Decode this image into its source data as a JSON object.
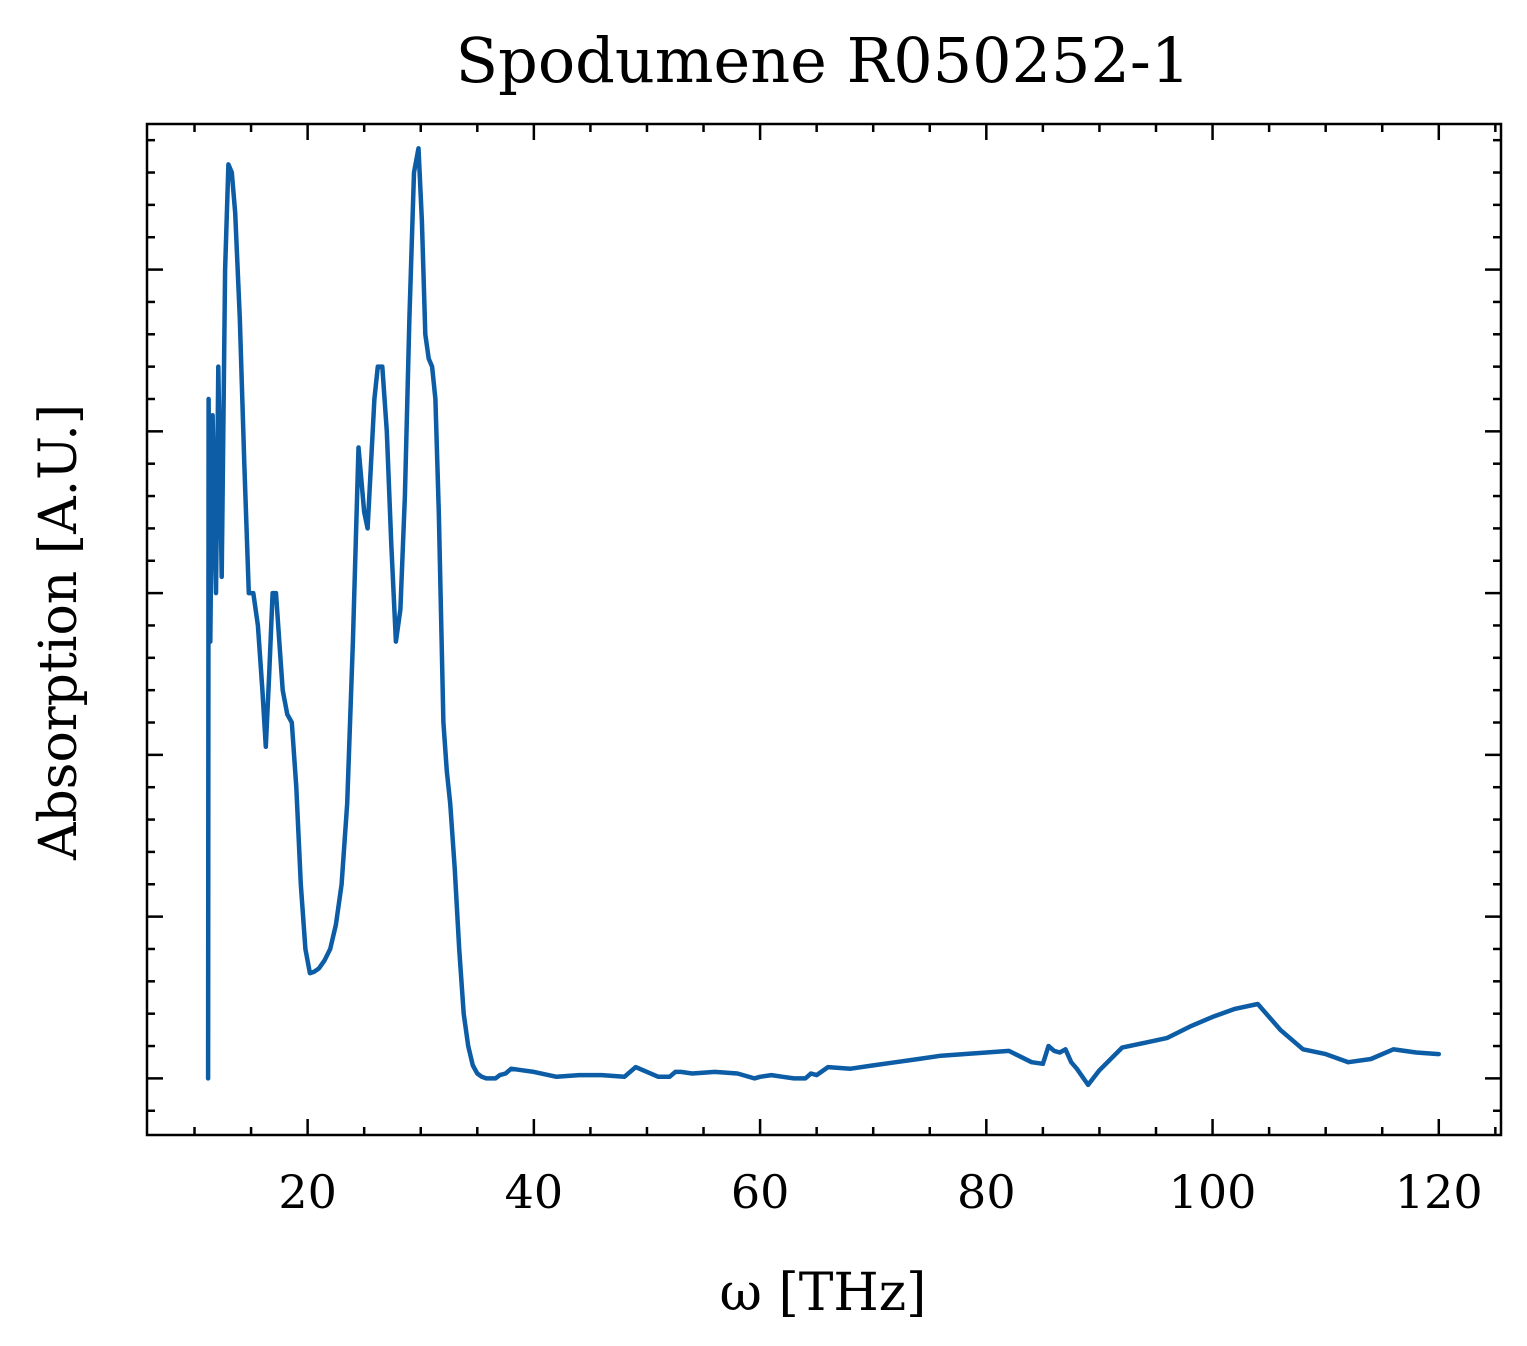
{
  "chart_data": {
    "type": "line",
    "title": "Spodumene R050252-1",
    "xlabel": "ω [THz]",
    "ylabel": "Absorption [A.U.]",
    "xlim": [
      5.8,
      125.5
    ],
    "ylim": [
      -0.035,
      0.59
    ],
    "xticks": [
      20,
      40,
      60,
      80,
      100,
      120
    ],
    "xtick_labels": [
      "20",
      "40",
      "60",
      "80",
      "100",
      "120"
    ],
    "yticks": [
      0.0,
      0.1,
      0.2,
      0.3,
      0.4,
      0.5
    ],
    "ytick_labels_visible": false,
    "grid": false,
    "colors": {
      "series": "#0c5da5"
    },
    "series": [
      {
        "color": "#0c5da5",
        "x": [
          11.2,
          11.25,
          11.4,
          11.6,
          11.9,
          12.1,
          12.4,
          12.7,
          13.0,
          13.3,
          13.6,
          14.0,
          14.4,
          14.8,
          15.2,
          15.6,
          16.0,
          16.3,
          16.6,
          16.9,
          17.2,
          17.5,
          17.8,
          18.2,
          18.6,
          19.0,
          19.4,
          19.8,
          20.2,
          20.6,
          21.0,
          21.5,
          22.0,
          22.5,
          23.0,
          23.5,
          24.0,
          24.5,
          25.0,
          25.3,
          25.6,
          25.9,
          26.2,
          26.6,
          27.0,
          27.4,
          27.8,
          28.2,
          28.6,
          29.0,
          29.4,
          29.8,
          30.1,
          30.4,
          30.7,
          31.0,
          31.3,
          31.6,
          32.0,
          32.3,
          32.6,
          33.0,
          33.4,
          33.8,
          34.2,
          34.6,
          35.0,
          35.4,
          35.8,
          36.2,
          36.6,
          37.0,
          37.5,
          38.0,
          39.0,
          40.0,
          42.0,
          44.0,
          46.0,
          48.0,
          49.0,
          50.0,
          51.0,
          52.0,
          52.5,
          53.0,
          54.0,
          56.0,
          58.0,
          59.5,
          60.0,
          61.0,
          62.0,
          63.0,
          64.0,
          64.5,
          65.0,
          66.0,
          68.0,
          70.0,
          72.0,
          74.0,
          76.0,
          78.0,
          80.0,
          82.0,
          84.0,
          85.0,
          85.5,
          86.0,
          86.5,
          87.0,
          87.5,
          88.0,
          89.0,
          90.0,
          92.0,
          94.0,
          96.0,
          98.0,
          100.0,
          102.0,
          104.0,
          106.0,
          108.0,
          110.0,
          112.0,
          114.0,
          116.0,
          118.0,
          120.0
        ],
        "y": [
          0.0,
          0.42,
          0.27,
          0.41,
          0.3,
          0.44,
          0.31,
          0.5,
          0.565,
          0.56,
          0.535,
          0.47,
          0.38,
          0.3,
          0.3,
          0.28,
          0.24,
          0.205,
          0.25,
          0.3,
          0.3,
          0.27,
          0.24,
          0.225,
          0.22,
          0.18,
          0.12,
          0.08,
          0.065,
          0.066,
          0.068,
          0.073,
          0.08,
          0.095,
          0.12,
          0.17,
          0.27,
          0.39,
          0.35,
          0.34,
          0.38,
          0.42,
          0.44,
          0.44,
          0.4,
          0.33,
          0.27,
          0.29,
          0.36,
          0.47,
          0.56,
          0.575,
          0.53,
          0.46,
          0.445,
          0.44,
          0.42,
          0.35,
          0.22,
          0.19,
          0.17,
          0.13,
          0.08,
          0.04,
          0.02,
          0.008,
          0.003,
          0.001,
          0.0,
          0.0,
          0.0,
          0.002,
          0.003,
          0.006,
          0.005,
          0.004,
          0.001,
          0.002,
          0.002,
          0.001,
          0.007,
          0.004,
          0.001,
          0.001,
          0.004,
          0.004,
          0.003,
          0.004,
          0.003,
          0.0,
          0.001,
          0.002,
          0.001,
          0.0,
          0.0,
          0.003,
          0.002,
          0.007,
          0.006,
          0.008,
          0.01,
          0.012,
          0.014,
          0.015,
          0.016,
          0.017,
          0.01,
          0.009,
          0.02,
          0.017,
          0.016,
          0.018,
          0.01,
          0.006,
          -0.004,
          0.005,
          0.019,
          0.022,
          0.025,
          0.032,
          0.038,
          0.043,
          0.046,
          0.03,
          0.018,
          0.015,
          0.01,
          0.012,
          0.018,
          0.016,
          0.015
        ]
      }
    ]
  }
}
